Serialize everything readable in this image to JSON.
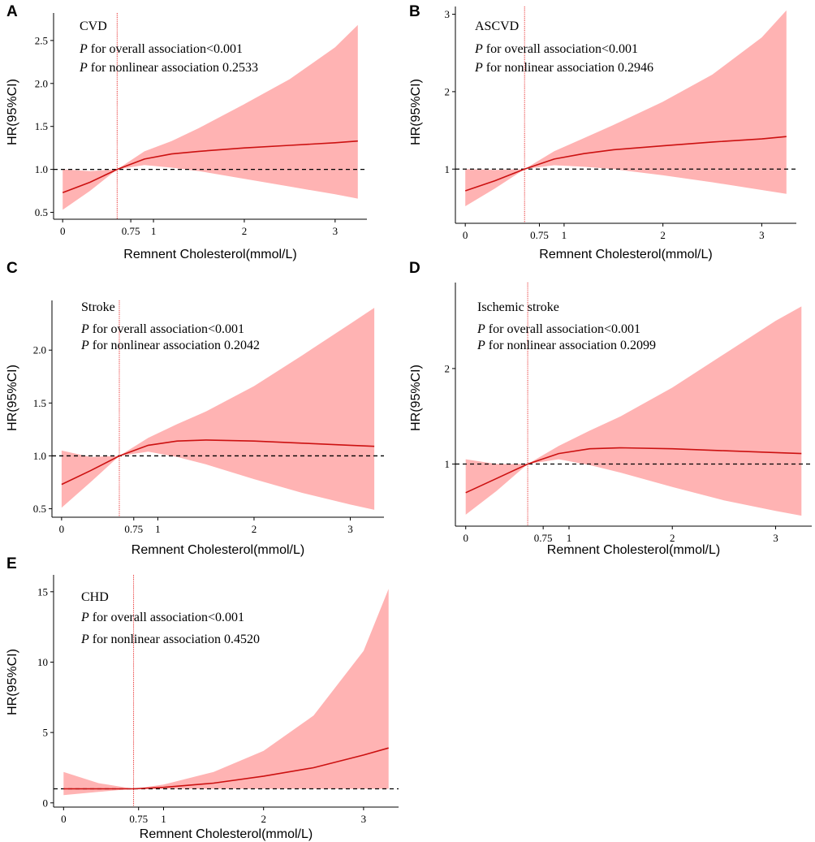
{
  "chart_data": [
    {
      "type": "line",
      "panel": "A",
      "outcome": "CVD",
      "p_symbol": "P",
      "p_overall": "for overall association<0.001",
      "p_nonlinear": "for nonlinear association 0.2533",
      "xlabel": "Remnent Cholesterol(mmol/L)",
      "ylabel": "HR(95%CI)",
      "xlim": [
        -0.1,
        3.35
      ],
      "ylim": [
        0.42,
        2.82
      ],
      "xticks": [
        0,
        0.75,
        1,
        2,
        3
      ],
      "xtick_labels": [
        "0",
        "0.75",
        "1",
        "2",
        "3"
      ],
      "yticks": [
        0.5,
        1.0,
        1.5,
        2.0,
        2.5
      ],
      "ytick_labels": [
        "0.5",
        "1.0",
        "1.5",
        "2.0",
        "2.5"
      ],
      "reference_hr": 1,
      "knot_x": 0.6,
      "x": [
        0,
        0.3,
        0.6,
        0.9,
        1.2,
        1.5,
        2.0,
        2.5,
        3.0,
        3.25
      ],
      "hr": [
        0.73,
        0.85,
        1.0,
        1.12,
        1.18,
        1.21,
        1.25,
        1.28,
        1.31,
        1.33
      ],
      "lower": [
        0.53,
        0.75,
        1.0,
        1.05,
        1.02,
        0.98,
        0.89,
        0.8,
        0.71,
        0.66
      ],
      "upper": [
        1.0,
        0.98,
        1.0,
        1.21,
        1.33,
        1.48,
        1.76,
        2.05,
        2.42,
        2.68
      ]
    },
    {
      "type": "line",
      "panel": "B",
      "outcome": "ASCVD",
      "p_symbol": "P",
      "p_overall": "for overall association<0.001",
      "p_nonlinear": "for nonlinear association 0.2946",
      "xlabel": "Remnent Cholesterol(mmol/L)",
      "ylabel": "HR(95%CI)",
      "xlim": [
        -0.1,
        3.35
      ],
      "ylim": [
        0.3,
        3.1
      ],
      "xticks": [
        0,
        0.75,
        1,
        2,
        3
      ],
      "xtick_labels": [
        "0",
        "0.75",
        "1",
        "2",
        "3"
      ],
      "yticks": [
        1,
        2,
        3
      ],
      "ytick_labels": [
        "1",
        "2",
        "3"
      ],
      "reference_hr": 1,
      "knot_x": 0.6,
      "x": [
        0,
        0.3,
        0.6,
        0.9,
        1.2,
        1.5,
        2.0,
        2.5,
        3.0,
        3.25
      ],
      "hr": [
        0.72,
        0.85,
        1.0,
        1.13,
        1.2,
        1.25,
        1.3,
        1.35,
        1.39,
        1.42
      ],
      "lower": [
        0.52,
        0.75,
        1.0,
        1.05,
        1.03,
        1.0,
        0.92,
        0.83,
        0.73,
        0.68
      ],
      "upper": [
        1.0,
        0.99,
        1.0,
        1.23,
        1.4,
        1.57,
        1.87,
        2.22,
        2.7,
        3.05
      ]
    },
    {
      "type": "line",
      "panel": "C",
      "outcome": "Stroke",
      "p_symbol": "P",
      "p_overall": "for overall association<0.001",
      "p_nonlinear": "for nonlinear association 0.2042",
      "xlabel": "Remnent Cholesterol(mmol/L)",
      "ylabel": "HR(95%CI)",
      "xlim": [
        -0.1,
        3.35
      ],
      "ylim": [
        0.42,
        2.47
      ],
      "xticks": [
        0,
        0.75,
        1,
        2,
        3
      ],
      "xtick_labels": [
        "0",
        "0.75",
        "1",
        "2",
        "3"
      ],
      "yticks": [
        0.5,
        1.0,
        1.5,
        2.0
      ],
      "ytick_labels": [
        "0.5",
        "1.0",
        "1.5",
        "2.0"
      ],
      "reference_hr": 1,
      "knot_x": 0.6,
      "x": [
        0,
        0.3,
        0.6,
        0.9,
        1.2,
        1.5,
        2.0,
        2.5,
        3.0,
        3.25
      ],
      "hr": [
        0.73,
        0.86,
        1.0,
        1.1,
        1.14,
        1.15,
        1.14,
        1.12,
        1.1,
        1.09
      ],
      "lower": [
        0.51,
        0.75,
        1.0,
        1.04,
        0.99,
        0.92,
        0.78,
        0.65,
        0.54,
        0.49
      ],
      "upper": [
        1.05,
        0.99,
        1.0,
        1.17,
        1.3,
        1.42,
        1.66,
        1.95,
        2.25,
        2.4
      ]
    },
    {
      "type": "line",
      "panel": "D",
      "outcome": "Ischemic stroke",
      "p_symbol": "P",
      "p_overall": "for overall association<0.001",
      "p_nonlinear": "for nonlinear association 0.2099",
      "xlabel": "Remnent Cholesterol(mmol/L)",
      "ylabel": "HR(95%CI)",
      "xlim": [
        -0.1,
        3.35
      ],
      "ylim": [
        0.35,
        2.9
      ],
      "xticks": [
        0,
        0.75,
        1,
        2,
        3
      ],
      "xtick_labels": [
        "0",
        "0.75",
        "1",
        "2",
        "3"
      ],
      "yticks": [
        1,
        2
      ],
      "ytick_labels": [
        "1",
        "2"
      ],
      "reference_hr": 1,
      "knot_x": 0.6,
      "x": [
        0,
        0.3,
        0.6,
        0.9,
        1.2,
        1.5,
        2.0,
        2.5,
        3.0,
        3.25
      ],
      "hr": [
        0.7,
        0.85,
        1.0,
        1.11,
        1.16,
        1.17,
        1.16,
        1.14,
        1.12,
        1.11
      ],
      "lower": [
        0.47,
        0.72,
        1.0,
        1.05,
        0.99,
        0.91,
        0.76,
        0.62,
        0.51,
        0.46
      ],
      "upper": [
        1.05,
        1.0,
        1.0,
        1.19,
        1.35,
        1.5,
        1.8,
        2.15,
        2.5,
        2.65
      ]
    },
    {
      "type": "line",
      "panel": "E",
      "outcome": "CHD",
      "p_symbol": "P",
      "p_overall": "for overall association<0.001",
      "p_nonlinear": "for nonlinear association 0.4520",
      "xlabel": "Remnent Cholesterol(mmol/L)",
      "ylabel": "HR(95%CI)",
      "xlim": [
        -0.1,
        3.35
      ],
      "ylim": [
        -0.3,
        16.2
      ],
      "xticks": [
        0,
        0.75,
        1,
        2,
        3
      ],
      "xtick_labels": [
        "0",
        "0.75",
        "1",
        "2",
        "3"
      ],
      "yticks": [
        0,
        5,
        10,
        15
      ],
      "ytick_labels": [
        "0",
        "5",
        "10",
        "15"
      ],
      "reference_hr": 1,
      "knot_x": 0.7,
      "x": [
        0,
        0.35,
        0.7,
        1.0,
        1.5,
        2.0,
        2.5,
        3.0,
        3.25
      ],
      "hr": [
        1.0,
        1.0,
        1.0,
        1.1,
        1.4,
        1.9,
        2.5,
        3.4,
        3.9
      ],
      "lower": [
        0.55,
        0.78,
        1.0,
        1.0,
        1.0,
        1.0,
        1.0,
        1.0,
        1.0
      ],
      "upper": [
        2.2,
        1.4,
        1.0,
        1.3,
        2.2,
        3.7,
        6.2,
        10.8,
        15.2
      ]
    }
  ]
}
